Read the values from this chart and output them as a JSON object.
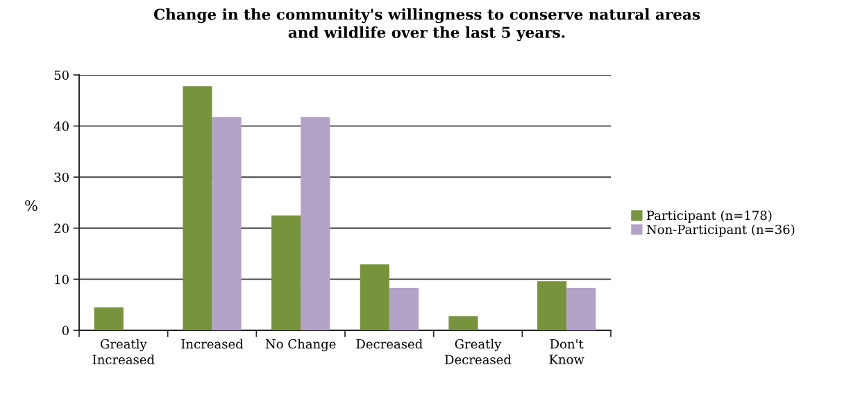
{
  "chart_data": {
    "type": "bar",
    "title": "Change in the community's willingness to conserve natural areas\nand wildlife over the last 5 years.",
    "ylabel": "%",
    "categories": [
      "Greatly\nIncreased",
      "Increased",
      "No Change",
      "Decreased",
      "Greatly\nDecreased",
      "Don't\nKnow"
    ],
    "series": [
      {
        "name": "Participant (n=178)",
        "color": "#77933c",
        "values": [
          4.5,
          47.8,
          22.5,
          12.9,
          2.8,
          9.6
        ]
      },
      {
        "name": "Non-Participant (n=36)",
        "color": "#b3a2c7",
        "values": [
          0,
          41.7,
          41.7,
          8.3,
          0,
          8.3
        ]
      }
    ],
    "ylim": [
      0,
      50
    ],
    "yticks": [
      0,
      10,
      20,
      30,
      40,
      50
    ],
    "grid": "y",
    "legend": "right"
  }
}
